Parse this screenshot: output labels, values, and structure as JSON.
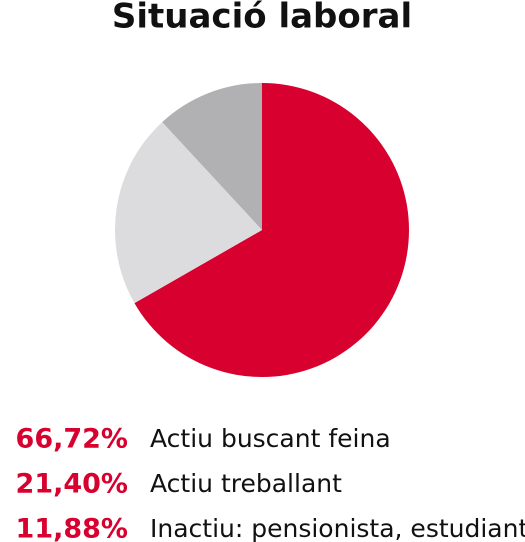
{
  "chart_data": {
    "type": "pie",
    "title": "Situació laboral",
    "categories": [
      "Actiu buscant feina",
      "Actiu treballant",
      "Inactiu: pensionista, estudiant"
    ],
    "values": [
      66.72,
      21.4,
      11.88
    ],
    "value_labels": [
      "66,72%",
      "21,40%",
      "11,88%"
    ],
    "colors": [
      "#d7002e",
      "#dcdcde",
      "#b1b1b4"
    ]
  }
}
